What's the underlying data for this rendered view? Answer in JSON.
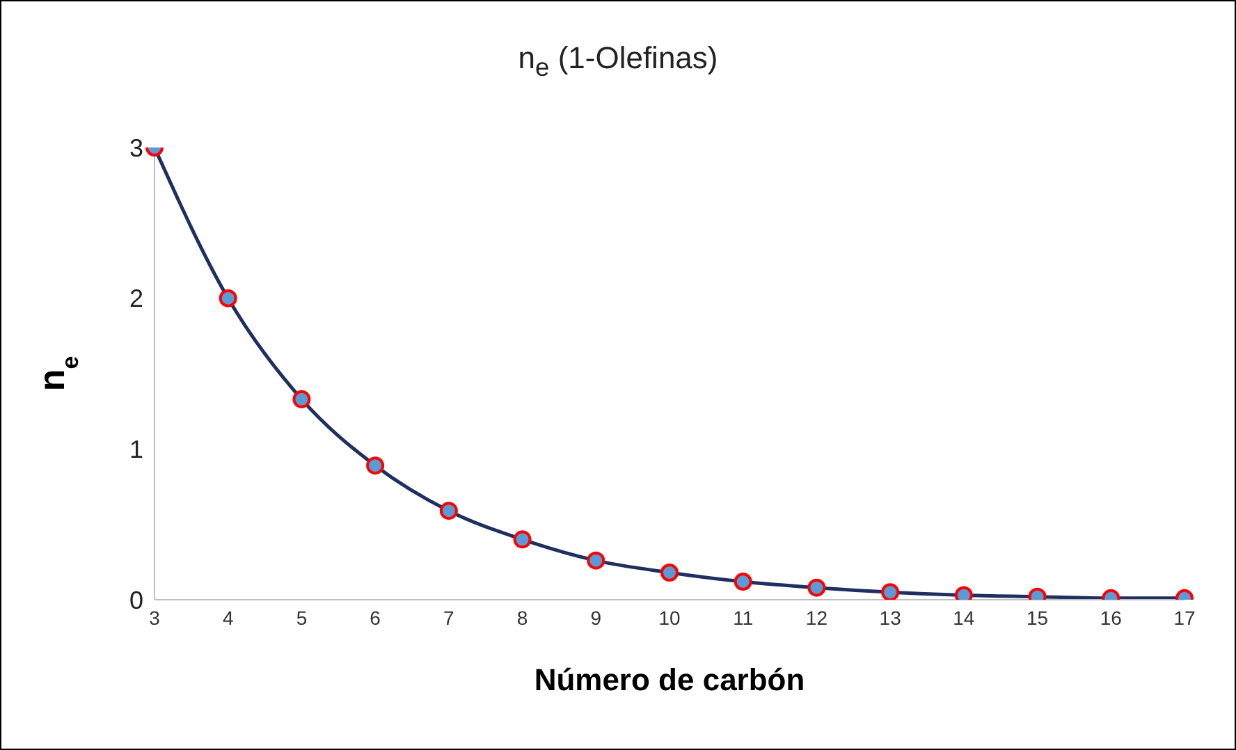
{
  "chart_data": {
    "type": "line",
    "title": "n$_{e}$  (1-Olefinas)",
    "xlabel": "Número de carbón",
    "ylabel": "n$_{e}$",
    "categories": [
      "3",
      "4",
      "5",
      "6",
      "7",
      "8",
      "9",
      "10",
      "11",
      "12",
      "13",
      "14",
      "15",
      "16",
      "17"
    ],
    "series": [
      {
        "color": "#1f2f5f",
        "values": [
          3,
          2,
          1.33,
          0.89,
          0.59,
          0.4,
          0.26,
          0.18,
          0.12,
          0.08,
          0.05,
          0.03,
          0.02,
          0.01,
          0.01
        ]
      }
    ],
    "ylim": [
      0,
      3
    ],
    "yticks": [
      0,
      1,
      2,
      3
    ],
    "grid": false,
    "marker": "circle",
    "line_style": "solid"
  }
}
